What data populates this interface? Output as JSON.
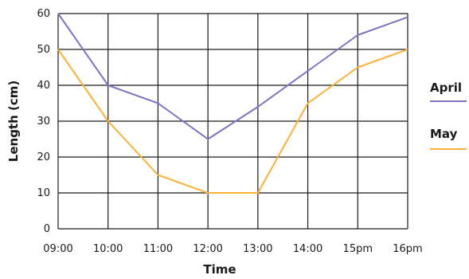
{
  "chart_data": {
    "type": "line",
    "xlabel": "Time",
    "ylabel": "Length (cm)",
    "categories": [
      "09:00",
      "10:00",
      "11:00",
      "12:00",
      "13:00",
      "14:00",
      "15pm",
      "16pm"
    ],
    "ylim": [
      0,
      60
    ],
    "yticks": [
      0,
      10,
      20,
      30,
      40,
      50,
      60
    ],
    "grid": true,
    "legend_position": "right",
    "series": [
      {
        "name": "April",
        "color": "#7b75c2",
        "values": [
          60,
          40,
          35,
          25,
          34,
          44,
          54,
          59
        ]
      },
      {
        "name": "May",
        "color": "#fbb03b",
        "values": [
          50,
          30,
          15,
          10,
          10,
          35,
          45,
          50
        ]
      }
    ]
  }
}
